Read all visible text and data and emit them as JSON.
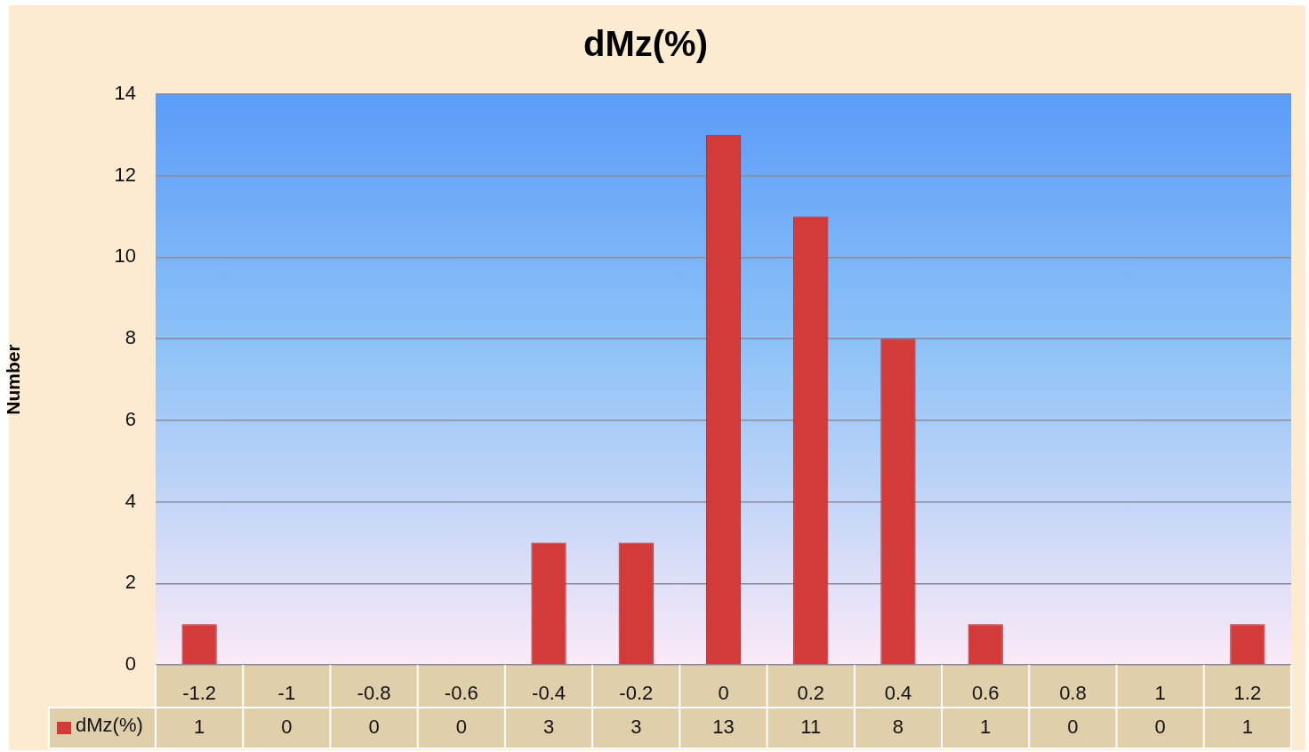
{
  "chart_data": {
    "type": "bar",
    "title": "dMz(%)",
    "ylabel": "Number",
    "categories": [
      "-1.2",
      "-1",
      "-0.8",
      "-0.6",
      "-0.4",
      "-0.2",
      "0",
      "0.2",
      "0.4",
      "0.6",
      "0.8",
      "1",
      "1.2"
    ],
    "series": [
      {
        "name": "dMz(%)",
        "color": "#d33b3b",
        "values": [
          1,
          0,
          0,
          0,
          3,
          3,
          13,
          11,
          8,
          1,
          0,
          0,
          1
        ]
      }
    ],
    "ylim": [
      0,
      14
    ],
    "yticks": [
      0,
      2,
      4,
      6,
      8,
      10,
      12,
      14
    ],
    "grid": "y",
    "data_labels": true,
    "legend": "bottom"
  }
}
